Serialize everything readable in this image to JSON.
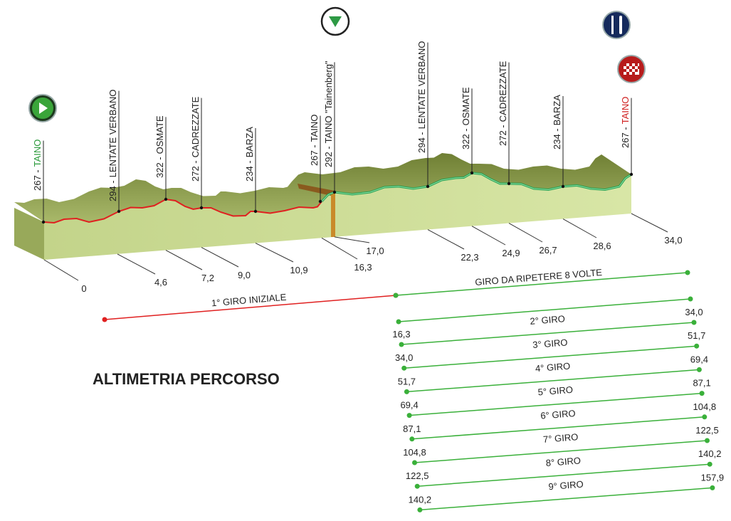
{
  "title": "ALTIMETRIA PERCORSO",
  "waypoints": [
    {
      "altitude": "267 -",
      "name": "TAINO"
    },
    {
      "altitude": "294 -",
      "name": "LENTATE VERBANO"
    },
    {
      "altitude": "322 -",
      "name": "OSMATE"
    },
    {
      "altitude": "272 -",
      "name": "CADREZZATE"
    },
    {
      "altitude": "234 -",
      "name": "BARZA"
    },
    {
      "altitude": "267 -",
      "name": "TAINO"
    },
    {
      "altitude": "292 -",
      "name": "TAINO \"Tainenberg\""
    },
    {
      "altitude": "294 -",
      "name": "LENTATE VERBANO"
    },
    {
      "altitude": "322 -",
      "name": "OSMATE"
    },
    {
      "altitude": "272 -",
      "name": "CADREZZATE"
    },
    {
      "altitude": "234 -",
      "name": "BARZA"
    },
    {
      "altitude": "267 -",
      "name": "TAINO"
    }
  ],
  "km": [
    "0",
    "4,6",
    "7,2",
    "9,0",
    "10,9",
    "16,3",
    "17,0",
    "22,3",
    "24,9",
    "26,7",
    "28,6",
    "34,0"
  ],
  "initial_lap": "1° GIRO INIZIALE",
  "repeat_lap": "GIRO DA RIPETERE 8 VOLTE",
  "laps": [
    {
      "label": "2° GIRO",
      "start": "16,3",
      "end": "34,0"
    },
    {
      "label": "3° GIRO",
      "start": "34,0",
      "end": "51,7"
    },
    {
      "label": "4° GIRO",
      "start": "51,7",
      "end": "69,4"
    },
    {
      "label": "5° GIRO",
      "start": "69,4",
      "end": "87,1"
    },
    {
      "label": "6° GIRO",
      "start": "87,1",
      "end": "104,8"
    },
    {
      "label": "7° GIRO",
      "start": "104,8",
      "end": "122,5"
    },
    {
      "label": "8° GIRO",
      "start": "122,5",
      "end": "140,2"
    },
    {
      "label": "9° GIRO",
      "start": "140,2",
      "end": "157,9"
    }
  ]
}
